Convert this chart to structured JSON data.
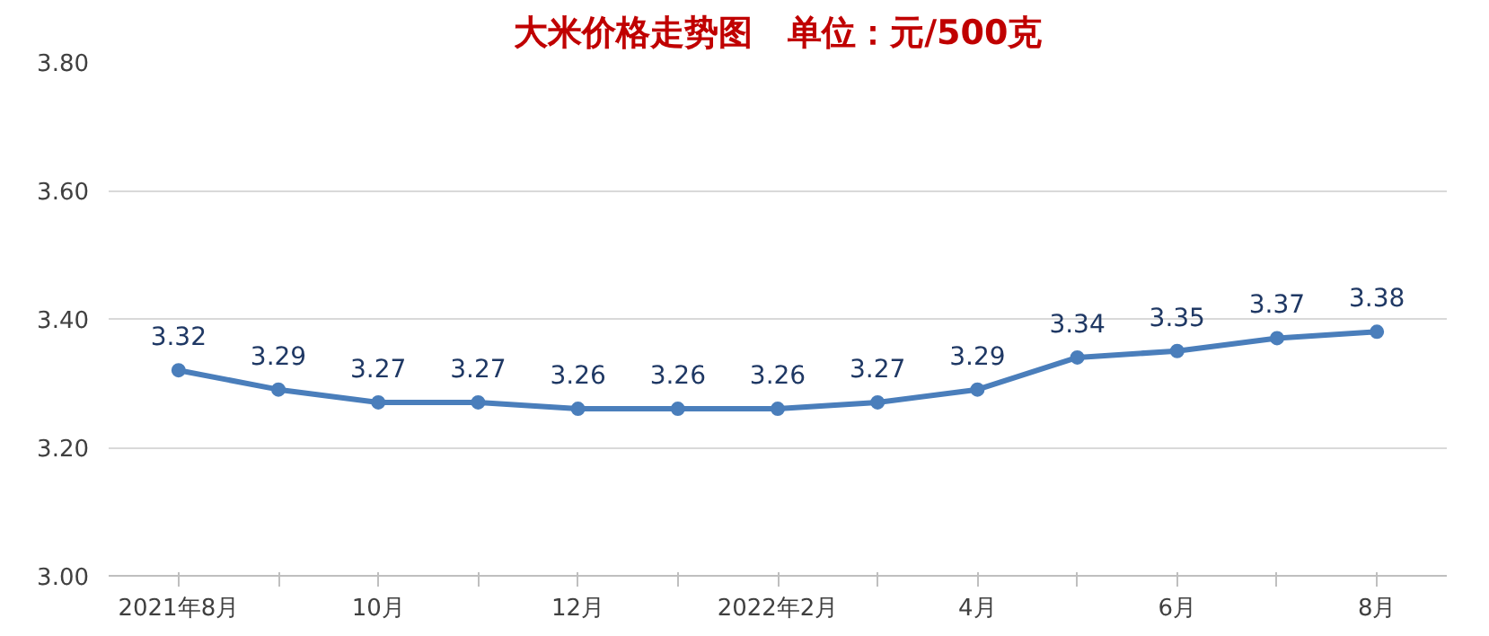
{
  "chart_data": {
    "type": "line",
    "title": "大米价格走势图   单位：元/500克",
    "categories": [
      "2021年8月",
      null,
      "10月",
      null,
      "12月",
      null,
      "2022年2月",
      null,
      "4月",
      null,
      "6月",
      null,
      "8月"
    ],
    "series": [
      {
        "color": "#4a7ebb",
        "values": [
          3.32,
          3.29,
          3.27,
          3.27,
          3.26,
          3.26,
          3.26,
          3.27,
          3.29,
          3.34,
          3.35,
          3.37,
          3.38
        ]
      }
    ],
    "ylim": [
      3.0,
      3.8
    ],
    "yticks": [
      {
        "value": 3.0,
        "label": "3.00"
      },
      {
        "value": 3.2,
        "label": "3.20"
      },
      {
        "value": 3.4,
        "label": "3.40"
      },
      {
        "value": 3.6,
        "label": "3.60"
      },
      {
        "value": 3.8,
        "label": "3.80"
      }
    ],
    "grid": "y",
    "marker": "circle",
    "line_style": "solid",
    "data_labels": true
  }
}
